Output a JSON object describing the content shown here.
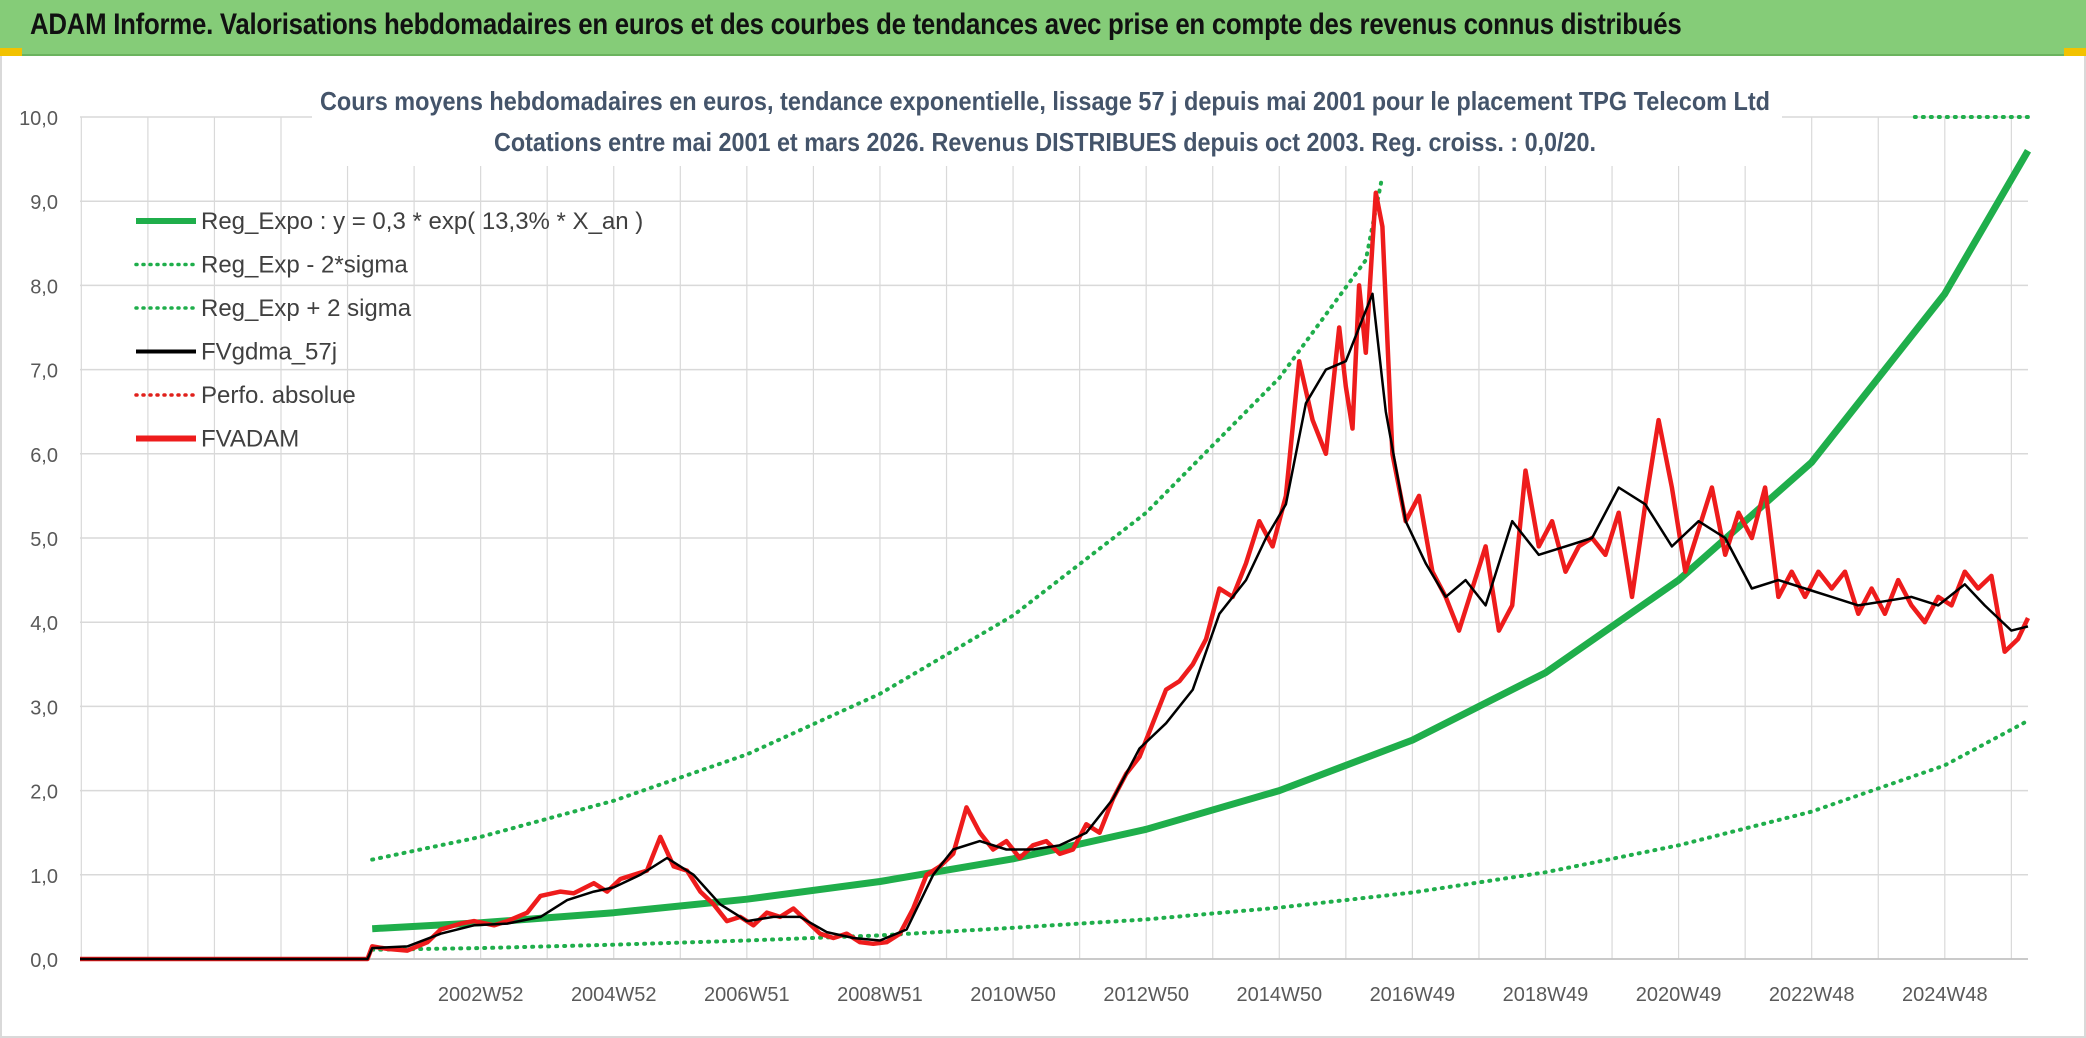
{
  "banner": {
    "title": "ADAM Informe. Valorisations hebdomadaires en euros et des courbes de tendances avec prise en compte des revenus connus distribués"
  },
  "colors": {
    "banner_bg": "#85cc78",
    "reg_expo": "#1fae4b",
    "sigma": "#1fae4b",
    "fvgdma": "#000000",
    "perfo": "#e0201b",
    "fvadam": "#ee1c1c",
    "grid": "#d9d9d9",
    "text": "#44546a"
  },
  "chart_data": {
    "type": "line",
    "title_line1": "Cours moyens hebdomadaires en euros, tendance exponentielle, lissage 57 j depuis mai 2001 pour le placement TPG Telecom Ltd",
    "title_line2": "Cotations entre mai 2001 et mars 2026. Revenus DISTRIBUES depuis oct 2003. Reg. croiss. : 0,0/20.",
    "xlabel": "",
    "ylabel": "",
    "ylim": [
      0,
      10
    ],
    "yticks": [
      "0,0",
      "1,0",
      "2,0",
      "3,0",
      "4,0",
      "5,0",
      "6,0",
      "7,0",
      "8,0",
      "9,0",
      "10,0"
    ],
    "xtick_labels": [
      "2002W52",
      "2004W52",
      "2006W51",
      "2008W51",
      "2010W50",
      "2012W50",
      "2014W50",
      "2016W49",
      "2018W49",
      "2020W49",
      "2022W48",
      "2024W48"
    ],
    "xtick_values": [
      2003.0,
      2005.0,
      2007.0,
      2009.0,
      2011.0,
      2013.0,
      2015.0,
      2017.0,
      2019.0,
      2021.0,
      2023.0,
      2025.0
    ],
    "xlim": [
      1996.98,
      2026.25
    ],
    "grid": true,
    "legend_position": "top-left",
    "legend": [
      {
        "label": "Reg_Expo : y = 0,3 * exp( 13,3% *  X_an )",
        "style": "thick-solid"
      },
      {
        "label": "Reg_Exp - 2*sigma",
        "style": "dotted"
      },
      {
        "label": "Reg_Exp + 2 sigma",
        "style": "dotted"
      },
      {
        "label": "FVgdma_57j",
        "style": "solid"
      },
      {
        "label": "Perfo. absolue",
        "style": "dotted"
      },
      {
        "label": "FVADAM",
        "style": "thick-solid"
      }
    ],
    "series": [
      {
        "name": "Reg_Expo : y = 0,3 * exp( 13,3% *  X_an )",
        "x": [
          2001.37,
          2003,
          2005,
          2007,
          2009,
          2011,
          2013,
          2015,
          2017,
          2019,
          2021,
          2023,
          2025,
          2026.25
        ],
        "y": [
          0.36,
          0.43,
          0.55,
          0.71,
          0.92,
          1.19,
          1.54,
          2.0,
          2.6,
          3.4,
          4.5,
          5.9,
          7.9,
          9.6
        ]
      },
      {
        "name": "Reg_Exp - 2*sigma",
        "x": [
          2001.37,
          2003,
          2005,
          2007,
          2009,
          2011,
          2013,
          2015,
          2017,
          2019,
          2021,
          2023,
          2025,
          2026.25
        ],
        "y": [
          0.11,
          0.13,
          0.17,
          0.22,
          0.28,
          0.37,
          0.47,
          0.61,
          0.79,
          1.03,
          1.35,
          1.75,
          2.3,
          2.83
        ]
      },
      {
        "name": "Reg_Exp + 2 sigma",
        "x": [
          2001.37,
          2003,
          2005,
          2007,
          2009,
          2011,
          2013,
          2015,
          2016.3,
          2016.55
        ],
        "y": [
          1.18,
          1.45,
          1.88,
          2.43,
          3.15,
          4.08,
          5.3,
          6.9,
          8.3,
          9.3
        ],
        "cap_y": 10.0,
        "cap_x": [
          2024.55,
          2026.25
        ]
      },
      {
        "name": "FVgdma_57j",
        "x": [
          1996.98,
          2001.3,
          2001.37,
          2001.9,
          2002.4,
          2002.9,
          2003.4,
          2003.9,
          2004.3,
          2004.7,
          2005.0,
          2005.4,
          2005.8,
          2006.2,
          2006.6,
          2007.0,
          2007.4,
          2007.8,
          2008.2,
          2008.6,
          2009.0,
          2009.4,
          2009.8,
          2010.1,
          2010.5,
          2010.9,
          2011.3,
          2011.7,
          2012.1,
          2012.5,
          2012.9,
          2013.3,
          2013.7,
          2014.1,
          2014.5,
          2014.8,
          2015.1,
          2015.4,
          2015.7,
          2016.0,
          2016.2,
          2016.4,
          2016.6,
          2016.9,
          2017.2,
          2017.5,
          2017.8,
          2018.1,
          2018.5,
          2018.9,
          2019.3,
          2019.7,
          2020.1,
          2020.5,
          2020.9,
          2021.3,
          2021.7,
          2022.1,
          2022.5,
          2022.9,
          2023.3,
          2023.7,
          2024.1,
          2024.5,
          2024.9,
          2025.3,
          2025.6,
          2026.0,
          2026.25
        ],
        "y": [
          0.0,
          0.0,
          0.13,
          0.15,
          0.3,
          0.4,
          0.42,
          0.5,
          0.7,
          0.8,
          0.85,
          1.0,
          1.2,
          1.0,
          0.65,
          0.45,
          0.5,
          0.5,
          0.32,
          0.25,
          0.22,
          0.35,
          1.0,
          1.3,
          1.4,
          1.3,
          1.3,
          1.35,
          1.5,
          1.9,
          2.5,
          2.8,
          3.2,
          4.1,
          4.5,
          5.0,
          5.4,
          6.6,
          7.0,
          7.1,
          7.5,
          7.9,
          6.5,
          5.2,
          4.7,
          4.3,
          4.5,
          4.2,
          5.2,
          4.8,
          4.9,
          5.0,
          5.6,
          5.4,
          4.9,
          5.2,
          5.0,
          4.4,
          4.5,
          4.4,
          4.3,
          4.2,
          4.25,
          4.3,
          4.2,
          4.45,
          4.2,
          3.9,
          3.95
        ]
      },
      {
        "name": "FVADAM",
        "x": [
          1996.98,
          2001.3,
          2001.37,
          2001.6,
          2001.9,
          2002.2,
          2002.4,
          2002.7,
          2002.9,
          2003.2,
          2003.4,
          2003.7,
          2003.9,
          2004.2,
          2004.4,
          2004.7,
          2004.9,
          2005.1,
          2005.3,
          2005.5,
          2005.7,
          2005.9,
          2006.1,
          2006.3,
          2006.5,
          2006.7,
          2006.9,
          2007.1,
          2007.3,
          2007.5,
          2007.7,
          2007.9,
          2008.1,
          2008.3,
          2008.5,
          2008.7,
          2008.9,
          2009.1,
          2009.3,
          2009.5,
          2009.7,
          2009.9,
          2010.1,
          2010.3,
          2010.5,
          2010.7,
          2010.9,
          2011.1,
          2011.3,
          2011.5,
          2011.7,
          2011.9,
          2012.1,
          2012.3,
          2012.5,
          2012.7,
          2012.9,
          2013.1,
          2013.3,
          2013.5,
          2013.7,
          2013.9,
          2014.1,
          2014.3,
          2014.5,
          2014.7,
          2014.9,
          2015.1,
          2015.3,
          2015.5,
          2015.7,
          2015.9,
          2016.0,
          2016.1,
          2016.2,
          2016.3,
          2016.4,
          2016.45,
          2016.55,
          2016.7,
          2016.9,
          2017.1,
          2017.3,
          2017.5,
          2017.7,
          2017.9,
          2018.1,
          2018.3,
          2018.5,
          2018.7,
          2018.9,
          2019.1,
          2019.3,
          2019.5,
          2019.7,
          2019.9,
          2020.1,
          2020.3,
          2020.5,
          2020.7,
          2020.9,
          2021.1,
          2021.3,
          2021.5,
          2021.7,
          2021.9,
          2022.1,
          2022.3,
          2022.5,
          2022.7,
          2022.9,
          2023.1,
          2023.3,
          2023.5,
          2023.7,
          2023.9,
          2024.1,
          2024.3,
          2024.5,
          2024.7,
          2024.9,
          2025.1,
          2025.3,
          2025.5,
          2025.7,
          2025.9,
          2026.1,
          2026.25
        ],
        "y": [
          0.0,
          0.0,
          0.15,
          0.12,
          0.1,
          0.2,
          0.35,
          0.42,
          0.45,
          0.4,
          0.45,
          0.55,
          0.75,
          0.8,
          0.78,
          0.9,
          0.8,
          0.95,
          1.0,
          1.05,
          1.45,
          1.1,
          1.05,
          0.8,
          0.65,
          0.45,
          0.5,
          0.4,
          0.55,
          0.5,
          0.6,
          0.45,
          0.3,
          0.25,
          0.3,
          0.2,
          0.18,
          0.2,
          0.3,
          0.6,
          1.0,
          1.1,
          1.25,
          1.8,
          1.5,
          1.3,
          1.4,
          1.2,
          1.35,
          1.4,
          1.25,
          1.3,
          1.6,
          1.5,
          1.9,
          2.2,
          2.4,
          2.8,
          3.2,
          3.3,
          3.5,
          3.8,
          4.4,
          4.3,
          4.7,
          5.2,
          4.9,
          5.5,
          7.1,
          6.4,
          6.0,
          7.5,
          6.8,
          6.3,
          8.0,
          7.2,
          8.5,
          9.1,
          8.7,
          6.0,
          5.2,
          5.5,
          4.6,
          4.3,
          3.9,
          4.4,
          4.9,
          3.9,
          4.2,
          5.8,
          4.9,
          5.2,
          4.6,
          4.9,
          5.0,
          4.8,
          5.3,
          4.3,
          5.4,
          6.4,
          5.6,
          4.6,
          5.1,
          5.6,
          4.8,
          5.3,
          5.0,
          5.6,
          4.3,
          4.6,
          4.3,
          4.6,
          4.4,
          4.6,
          4.1,
          4.4,
          4.1,
          4.5,
          4.2,
          4.0,
          4.3,
          4.2,
          4.6,
          4.4,
          4.55,
          3.65,
          3.8,
          4.05
        ]
      }
    ]
  }
}
